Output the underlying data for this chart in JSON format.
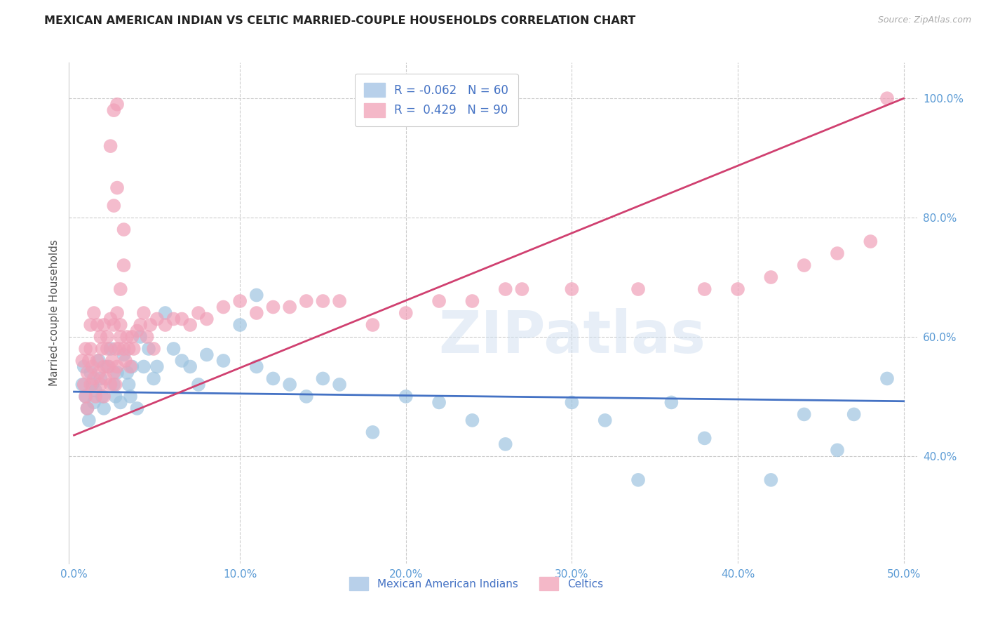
{
  "title": "MEXICAN AMERICAN INDIAN VS CELTIC MARRIED-COUPLE HOUSEHOLDS CORRELATION CHART",
  "source": "Source: ZipAtlas.com",
  "ylabel": "Married-couple Households",
  "x_ticks": [
    0.0,
    0.1,
    0.2,
    0.3,
    0.4,
    0.5
  ],
  "x_ticklabels": [
    "0.0%",
    "10.0%",
    "20.0%",
    "30.0%",
    "40.0%",
    "50.0%"
  ],
  "y_ticks": [
    0.4,
    0.6,
    0.8,
    1.0
  ],
  "y_ticklabels": [
    "40.0%",
    "60.0%",
    "80.0%",
    "100.0%"
  ],
  "x_lim": [
    -0.003,
    0.508
  ],
  "y_lim": [
    0.22,
    1.06
  ],
  "blue_line_x": [
    0.0,
    0.5
  ],
  "blue_line_y": [
    0.508,
    0.492
  ],
  "pink_line_x": [
    0.0,
    0.5
  ],
  "pink_line_y": [
    0.435,
    1.0
  ],
  "scatter_color_blue": "#9ec4e0",
  "scatter_color_pink": "#f0a0b8",
  "line_color_blue": "#4472c4",
  "line_color_pink": "#d04070",
  "legend1_blue_label": "R = -0.062   N = 60",
  "legend1_pink_label": "R =  0.429   N = 90",
  "legend2_blue_label": "Mexican American Indians",
  "legend2_pink_label": "Celtics",
  "watermark": "ZIPatlas",
  "bg_color": "#ffffff",
  "grid_color": "#cccccc",
  "title_color": "#222222",
  "source_text": "Source: ZipAtlas.com",
  "tick_color": "#5b9bd5",
  "ylabel_color": "#555555",
  "blue_x": [
    0.005,
    0.006,
    0.007,
    0.008,
    0.009,
    0.01,
    0.011,
    0.012,
    0.013,
    0.015,
    0.016,
    0.017,
    0.018,
    0.02,
    0.022,
    0.024,
    0.025,
    0.026,
    0.028,
    0.03,
    0.032,
    0.033,
    0.034,
    0.035,
    0.038,
    0.04,
    0.042,
    0.045,
    0.048,
    0.05,
    0.055,
    0.06,
    0.065,
    0.07,
    0.075,
    0.08,
    0.09,
    0.1,
    0.11,
    0.12,
    0.13,
    0.14,
    0.15,
    0.16,
    0.18,
    0.2,
    0.22,
    0.24,
    0.26,
    0.3,
    0.32,
    0.34,
    0.36,
    0.38,
    0.42,
    0.44,
    0.46,
    0.47,
    0.49,
    0.11
  ],
  "blue_y": [
    0.52,
    0.55,
    0.5,
    0.48,
    0.46,
    0.54,
    0.52,
    0.49,
    0.51,
    0.56,
    0.53,
    0.5,
    0.48,
    0.55,
    0.58,
    0.52,
    0.5,
    0.54,
    0.49,
    0.57,
    0.54,
    0.52,
    0.5,
    0.55,
    0.48,
    0.6,
    0.55,
    0.58,
    0.53,
    0.55,
    0.64,
    0.58,
    0.56,
    0.55,
    0.52,
    0.57,
    0.56,
    0.62,
    0.55,
    0.53,
    0.52,
    0.5,
    0.53,
    0.52,
    0.44,
    0.5,
    0.49,
    0.46,
    0.42,
    0.49,
    0.46,
    0.36,
    0.49,
    0.43,
    0.36,
    0.47,
    0.41,
    0.47,
    0.53,
    0.67
  ],
  "pink_x": [
    0.005,
    0.006,
    0.007,
    0.007,
    0.008,
    0.008,
    0.009,
    0.01,
    0.01,
    0.011,
    0.012,
    0.013,
    0.014,
    0.015,
    0.016,
    0.017,
    0.018,
    0.018,
    0.019,
    0.02,
    0.021,
    0.022,
    0.023,
    0.024,
    0.025,
    0.025,
    0.026,
    0.027,
    0.028,
    0.03,
    0.031,
    0.032,
    0.033,
    0.034,
    0.035,
    0.036,
    0.038,
    0.04,
    0.042,
    0.044,
    0.046,
    0.048,
    0.05,
    0.055,
    0.06,
    0.065,
    0.07,
    0.075,
    0.08,
    0.09,
    0.1,
    0.11,
    0.12,
    0.13,
    0.14,
    0.15,
    0.16,
    0.18,
    0.2,
    0.22,
    0.24,
    0.26,
    0.3,
    0.34,
    0.38,
    0.4,
    0.42,
    0.44,
    0.46,
    0.48,
    0.01,
    0.012,
    0.014,
    0.016,
    0.018,
    0.02,
    0.022,
    0.024,
    0.026,
    0.028,
    0.024,
    0.026,
    0.03,
    0.022,
    0.024,
    0.026,
    0.028,
    0.03,
    0.49,
    0.27
  ],
  "pink_y": [
    0.56,
    0.52,
    0.58,
    0.5,
    0.54,
    0.48,
    0.56,
    0.52,
    0.58,
    0.55,
    0.53,
    0.5,
    0.56,
    0.54,
    0.52,
    0.58,
    0.55,
    0.5,
    0.53,
    0.58,
    0.55,
    0.52,
    0.56,
    0.54,
    0.58,
    0.52,
    0.55,
    0.58,
    0.6,
    0.58,
    0.56,
    0.6,
    0.58,
    0.55,
    0.6,
    0.58,
    0.61,
    0.62,
    0.64,
    0.6,
    0.62,
    0.58,
    0.63,
    0.62,
    0.63,
    0.63,
    0.62,
    0.64,
    0.63,
    0.65,
    0.66,
    0.64,
    0.65,
    0.65,
    0.66,
    0.66,
    0.66,
    0.62,
    0.64,
    0.66,
    0.66,
    0.68,
    0.68,
    0.68,
    0.68,
    0.68,
    0.7,
    0.72,
    0.74,
    0.76,
    0.62,
    0.64,
    0.62,
    0.6,
    0.62,
    0.6,
    0.63,
    0.62,
    0.64,
    0.62,
    0.82,
    0.85,
    0.78,
    0.92,
    0.98,
    0.99,
    0.68,
    0.72,
    1.0,
    0.68
  ]
}
